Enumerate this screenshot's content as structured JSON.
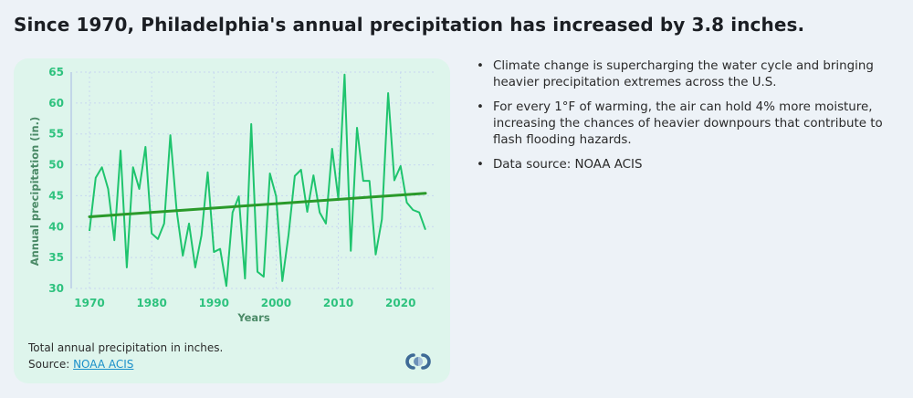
{
  "title": "Since 1970, Philadelphia's annual precipitation has increased by 3.8 inches.",
  "bullets": [
    "Climate change is supercharging the water cycle and bringing heavier precipitation extremes across the U.S.",
    "For every 1°F of warming, the air can hold 4% more moisture, increasing the chances of heavier downpours that contribute to flash flooding hazards.",
    "Data source: NOAA ACIS"
  ],
  "caption": {
    "description": "Total annual precipitation in inches.",
    "source_prefix": "Source: ",
    "source_link": "NOAA ACIS"
  },
  "logo_icon": "climate-central-logo",
  "colors": {
    "series": "#1fc46e",
    "trend": "#2a9a2a",
    "tick": "#2ec27e",
    "card_bg": "#def5ec",
    "page_bg": "#edf2f7",
    "link": "#1a8fc9"
  },
  "chart_data": {
    "type": "line",
    "title": "",
    "xlabel": "Years",
    "ylabel": "Annual precipitation (in.)",
    "xlim": [
      1970,
      2024
    ],
    "ylim": [
      30,
      65
    ],
    "x_ticks": [
      1970,
      1980,
      1990,
      2000,
      2010,
      2020
    ],
    "y_ticks": [
      30,
      35,
      40,
      45,
      50,
      55,
      60,
      65
    ],
    "grid": true,
    "x": [
      1970,
      1971,
      1972,
      1973,
      1974,
      1975,
      1976,
      1977,
      1978,
      1979,
      1980,
      1981,
      1982,
      1983,
      1984,
      1985,
      1986,
      1987,
      1988,
      1989,
      1990,
      1991,
      1992,
      1993,
      1994,
      1995,
      1996,
      1997,
      1998,
      1999,
      2000,
      2001,
      2002,
      2003,
      2004,
      2005,
      2006,
      2007,
      2008,
      2009,
      2010,
      2011,
      2012,
      2013,
      2014,
      2015,
      2016,
      2017,
      2018,
      2019,
      2020,
      2021,
      2022,
      2023,
      2024
    ],
    "series": [
      {
        "name": "Annual precipitation",
        "values": [
          39.3,
          47.9,
          49.6,
          46.1,
          37.8,
          52.3,
          33.4,
          49.6,
          46.1,
          52.9,
          38.9,
          38.0,
          40.5,
          54.8,
          42.7,
          35.3,
          40.5,
          33.4,
          38.6,
          48.8,
          35.9,
          36.4,
          30.4,
          42.3,
          44.9,
          31.6,
          56.6,
          32.7,
          31.9,
          48.6,
          44.9,
          31.2,
          38.7,
          48.2,
          49.2,
          42.4,
          48.3,
          42.3,
          40.5,
          52.6,
          44.5,
          64.6,
          36.1,
          56.0,
          47.4,
          47.4,
          35.5,
          41.2,
          61.6,
          47.5,
          49.8,
          43.9,
          42.7,
          42.3,
          39.5
        ]
      },
      {
        "name": "Trend",
        "values_at_endpoints": {
          "1970": 41.6,
          "2024": 45.4
        }
      }
    ]
  }
}
